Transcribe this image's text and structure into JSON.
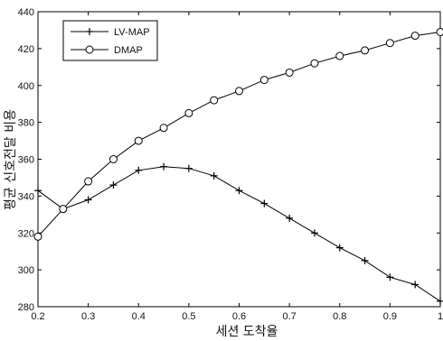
{
  "chart_data": {
    "type": "line",
    "title": "",
    "xlabel": "세션 도착율",
    "ylabel": "평균 신호전달 비용",
    "xlim": [
      0.2,
      1.0
    ],
    "ylim": [
      280,
      440
    ],
    "xticks": [
      "0.2",
      "0.3",
      "0.4",
      "0.5",
      "0.6",
      "0.7",
      "0.8",
      "0.9",
      "1"
    ],
    "yticks": [
      "280",
      "300",
      "320",
      "340",
      "360",
      "380",
      "400",
      "420",
      "440"
    ],
    "grid": false,
    "legend_position": "top-left",
    "x": [
      0.2,
      0.25,
      0.3,
      0.35,
      0.4,
      0.45,
      0.5,
      0.55,
      0.6,
      0.65,
      0.7,
      0.75,
      0.8,
      0.85,
      0.9,
      0.95,
      1.0
    ],
    "series": [
      {
        "name": "LV-MAP",
        "marker": "plus",
        "color": "#000000",
        "values": [
          343,
          333,
          338,
          346,
          354,
          356,
          355,
          351,
          343,
          336,
          328,
          320,
          312,
          305,
          296,
          292,
          283
        ]
      },
      {
        "name": "DMAP",
        "marker": "circle",
        "color": "#000000",
        "values": [
          318,
          333,
          348,
          360,
          370,
          377,
          385,
          392,
          397,
          403,
          407,
          412,
          416,
          419,
          423,
          427,
          429
        ]
      }
    ]
  }
}
